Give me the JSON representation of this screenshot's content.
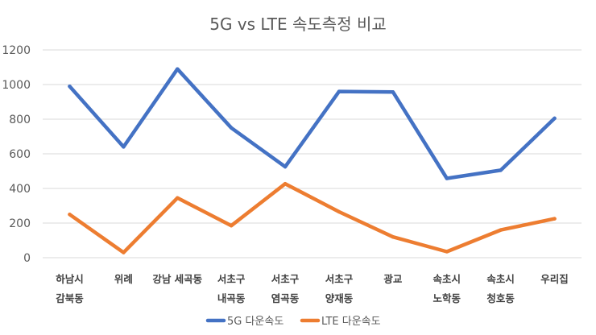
{
  "chart_data": {
    "type": "line",
    "title": "5G vs LTE 속도측정 비교",
    "xlabel": "",
    "ylabel": "",
    "ylim": [
      0,
      1200
    ],
    "yticks": [
      0,
      200,
      400,
      600,
      800,
      1000,
      1200
    ],
    "grid": true,
    "legend_position": "bottom",
    "categories": [
      [
        "하남시",
        "감북동"
      ],
      [
        "위례"
      ],
      [
        "강남 세곡동"
      ],
      [
        "서초구",
        "내곡동"
      ],
      [
        "서초구",
        "염곡동"
      ],
      [
        "서초구",
        "양재동"
      ],
      [
        "광교"
      ],
      [
        "속초시",
        "노학동"
      ],
      [
        "속초시",
        "청호동"
      ],
      [
        "우리집"
      ]
    ],
    "series": [
      {
        "name": "5G 다운속도",
        "color": "#4472c4",
        "values": [
          990,
          640,
          1090,
          750,
          525,
          960,
          957,
          458,
          505,
          805
        ]
      },
      {
        "name": "LTE 다운속도",
        "color": "#ed7d31",
        "values": [
          250,
          30,
          345,
          185,
          427,
          265,
          120,
          35,
          160,
          225
        ]
      }
    ]
  }
}
